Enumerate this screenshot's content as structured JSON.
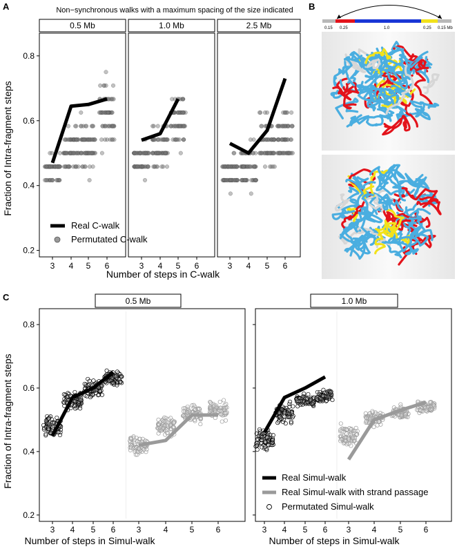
{
  "panel_labels": {
    "a": "A",
    "b": "B",
    "c": "C"
  },
  "panel_a": {
    "title": "Non−synchronous walks with a maximum spacing of the size indicated",
    "ylabel": "Fraction of Intra-fragment steps",
    "xlabel": "Number of steps in C-walk",
    "legend": {
      "real": "Real C-walk",
      "perm": "Permutated C-walk"
    }
  },
  "panel_b": {
    "scale_labels": [
      "0.15",
      "0.25",
      "1.0",
      "0.25",
      "0.15 Mb"
    ],
    "colors": {
      "grey": "#b8b8b8",
      "red": "#e3131b",
      "blue": "#1a36d6",
      "yellow": "#f2e21b",
      "cyan": "#4aaee0"
    }
  },
  "panel_c": {
    "ylabel": "Fraction of Intra-fragment steps",
    "xlabel": "Number of steps in Simul-walk",
    "legend": {
      "real": "Real Simul-walk",
      "strand": "Real Simul-walk with strand passage",
      "perm": "Permutated Simul-walk"
    }
  },
  "chart_data": [
    {
      "type": "scatter",
      "facets": [
        "0.5 Mb",
        "1.0 Mb",
        "2.5 Mb"
      ],
      "x": [
        3,
        4,
        5,
        6
      ],
      "ylim": [
        0.18,
        0.87
      ],
      "yticks": [
        0.2,
        0.4,
        0.6,
        0.8
      ],
      "series": [
        {
          "name": "Real C-walk",
          "kind": "line",
          "color": "#000000",
          "values": [
            [
              0.47,
              0.645,
              0.65,
              0.667
            ],
            [
              0.54,
              0.56,
              0.667,
              null
            ],
            [
              0.53,
              0.5,
              0.57,
              0.73
            ]
          ]
        },
        {
          "name": "Permutated C-walk",
          "kind": "points",
          "color": "#666666",
          "centers": [
            [
              0.45,
              0.51,
              0.52,
              0.62
            ],
            [
              0.48,
              0.52,
              0.6,
              null
            ],
            [
              0.44,
              0.45,
              0.52,
              0.55
            ]
          ],
          "spreads": [
            [
              0.06,
              0.09,
              0.1,
              0.13
            ],
            [
              0.06,
              0.09,
              0.12,
              null
            ],
            [
              0.07,
              0.11,
              0.12,
              0.12
            ]
          ]
        }
      ]
    },
    {
      "type": "scatter",
      "facets": [
        "0.5 Mb",
        "1.0 Mb"
      ],
      "x": [
        3,
        4,
        5,
        6
      ],
      "ylim": [
        0.18,
        0.85
      ],
      "yticks": [
        0.2,
        0.4,
        0.6,
        0.8
      ],
      "series": [
        {
          "name": "Real Simul-walk",
          "kind": "line",
          "color": "#000000",
          "values": [
            [
              0.45,
              0.57,
              0.6,
              0.65
            ],
            [
              0.46,
              0.57,
              0.6,
              0.635
            ]
          ]
        },
        {
          "name": "Real Simul-walk with strand passage",
          "kind": "line",
          "color": "#9a9a9a",
          "values": [
            [
              0.42,
              0.435,
              0.515,
              0.515
            ],
            [
              0.375,
              0.5,
              0.53,
              0.555
            ]
          ]
        },
        {
          "name": "Permutated Simul-walk",
          "kind": "open-points",
          "groups": [
            {
              "facet": 0,
              "offset": 0,
              "color": "#000000",
              "centers": [
                0.48,
                0.56,
                0.6,
                0.63
              ],
              "spreads": [
                0.045,
                0.04,
                0.035,
                0.03
              ]
            },
            {
              "facet": 0,
              "offset": 4,
              "color": "#9a9a9a",
              "centers": [
                0.42,
                0.48,
                0.52,
                0.53
              ],
              "spreads": [
                0.045,
                0.045,
                0.04,
                0.04
              ]
            },
            {
              "facet": 1,
              "offset": 0,
              "color": "#000000",
              "centers": [
                0.44,
                0.52,
                0.56,
                0.575
              ],
              "spreads": [
                0.045,
                0.04,
                0.03,
                0.025
              ]
            },
            {
              "facet": 1,
              "offset": 4,
              "color": "#9a9a9a",
              "centers": [
                0.45,
                0.505,
                0.52,
                0.54
              ],
              "spreads": [
                0.045,
                0.03,
                0.03,
                0.025
              ]
            }
          ]
        }
      ]
    }
  ]
}
